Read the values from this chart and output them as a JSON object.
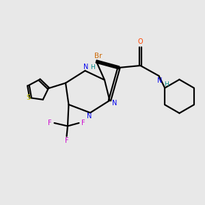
{
  "background_color": "#e8e8e8",
  "bond_color": "#000000",
  "atom_colors": {
    "N": "#0000ee",
    "H": "#008888",
    "O": "#ff4500",
    "Br": "#cc6600",
    "S": "#cccc00",
    "F": "#cc00cc",
    "C": "#000000"
  },
  "figsize": [
    3.0,
    3.0
  ],
  "dpi": 100,
  "xlim": [
    0,
    10
  ],
  "ylim": [
    0,
    10
  ]
}
